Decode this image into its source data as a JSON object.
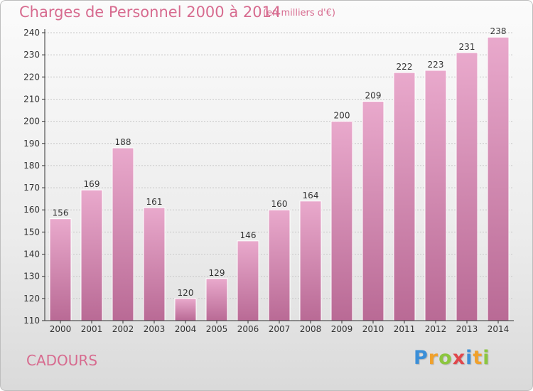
{
  "title": "Charges de Personnel 2000 à 2014",
  "subtitle": "(en milliers d'€)",
  "commune": "CADOURS",
  "logo": {
    "letters": [
      {
        "ch": "P",
        "color": "#3b8fd8"
      },
      {
        "ch": "r",
        "color": "#f0a12c"
      },
      {
        "ch": "o",
        "color": "#8cc63f"
      },
      {
        "ch": "x",
        "color": "#e0474c"
      },
      {
        "ch": "i",
        "color": "#3b8fd8"
      },
      {
        "ch": "t",
        "color": "#f0a12c"
      },
      {
        "ch": "i",
        "color": "#8cc63f"
      }
    ]
  },
  "colors": {
    "bar_light": "#e9a9cc",
    "bar_dark": "#b96a95",
    "bar_edge": "#ffffff",
    "title": "#d76b8f",
    "axis": "#333333",
    "grid": "#c8c8c8"
  },
  "chart_data": {
    "type": "bar",
    "categories": [
      "2000",
      "2001",
      "2002",
      "2003",
      "2004",
      "2005",
      "2006",
      "2007",
      "2008",
      "2009",
      "2010",
      "2011",
      "2012",
      "2013",
      "2014"
    ],
    "values": [
      156,
      169,
      188,
      161,
      120,
      129,
      146,
      160,
      164,
      200,
      209,
      222,
      223,
      231,
      238
    ],
    "title": "Charges de Personnel 2000 à 2014",
    "subtitle": "(en milliers d'€)",
    "xlabel": "",
    "ylabel": "",
    "ylim": [
      110,
      240
    ],
    "yticks": [
      110,
      120,
      130,
      140,
      150,
      160,
      170,
      180,
      190,
      200,
      210,
      220,
      230,
      240
    ],
    "grid": true,
    "data_labels": true
  }
}
